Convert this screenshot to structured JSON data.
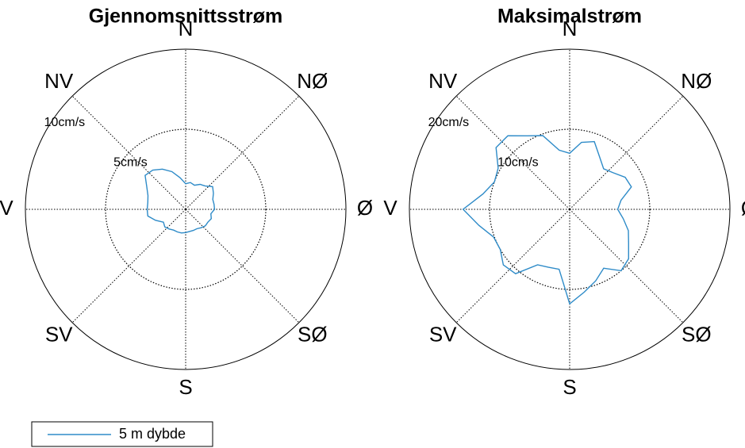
{
  "chart_data": [
    {
      "type": "polar",
      "title": "Gjennomsnittsstrøm",
      "theta": [
        0,
        10,
        20,
        30,
        40,
        50,
        60,
        70,
        80,
        90,
        100,
        110,
        120,
        130,
        140,
        150,
        160,
        170,
        180,
        190,
        200,
        210,
        220,
        230,
        240,
        250,
        260,
        270,
        280,
        290,
        300,
        310,
        320,
        330,
        340,
        350
      ],
      "series": [
        {
          "name": "5 m dybde",
          "color": "#2e8bc8",
          "values": [
            1.6,
            1.7,
            1.6,
            1.8,
            1.9,
            2.2,
            2.0,
            1.8,
            1.8,
            1.8,
            1.6,
            1.7,
            1.6,
            1.6,
            1.5,
            1.4,
            1.4,
            1.4,
            1.45,
            1.5,
            1.5,
            1.5,
            1.6,
            1.7,
            1.6,
            2.0,
            2.4,
            2.4,
            2.4,
            2.5,
            2.8,
            3.3,
            3.2,
            2.9,
            2.5,
            2.0
          ]
        }
      ],
      "rlim": [
        0,
        10
      ],
      "rticks": [
        {
          "value": 5,
          "label": "5cm/s"
        },
        {
          "value": 10,
          "label": "10cm/s"
        }
      ],
      "thetaticks": [
        {
          "value": 0,
          "label": "N"
        },
        {
          "value": 45,
          "label": "NØ"
        },
        {
          "value": 90,
          "label": "Ø"
        },
        {
          "value": 135,
          "label": "SØ"
        },
        {
          "value": 180,
          "label": "S"
        },
        {
          "value": 225,
          "label": "SV"
        },
        {
          "value": 270,
          "label": "V"
        },
        {
          "value": 315,
          "label": "NV"
        }
      ],
      "legend": "bottom-left"
    },
    {
      "type": "polar",
      "title": "Maksimalstrøm",
      "theta": [
        0,
        10,
        20,
        30,
        40,
        50,
        60,
        70,
        80,
        90,
        100,
        110,
        120,
        130,
        140,
        150,
        160,
        170,
        180,
        190,
        200,
        210,
        220,
        230,
        240,
        250,
        260,
        270,
        280,
        290,
        300,
        310,
        320,
        330,
        340,
        350
      ],
      "series": [
        {
          "color": "#2e8bc8",
          "values": [
            7.0,
            8.5,
            9.0,
            7.5,
            6.6,
            7.1,
            8.0,
            8.2,
            6.5,
            6.0,
            6.8,
            7.8,
            8.5,
            9.6,
            10.0,
            8.5,
            9.5,
            10.5,
            11.8,
            7.6,
            7.7,
            8.0,
            10.5,
            10.8,
            10.0,
            10.1,
            11.5,
            13.3,
            11.0,
            10.0,
            10.3,
            12.0,
            12.0,
            10.6,
            9.8,
            7.5
          ]
        }
      ],
      "rlim": [
        0,
        20
      ],
      "rticks": [
        {
          "value": 10,
          "label": "10cm/s"
        },
        {
          "value": 20,
          "label": "20cm/s"
        }
      ],
      "thetaticks": [
        {
          "value": 0,
          "label": "N"
        },
        {
          "value": 45,
          "label": "NØ"
        },
        {
          "value": 90,
          "label": "Ø"
        },
        {
          "value": 135,
          "label": "SØ"
        },
        {
          "value": 180,
          "label": "S"
        },
        {
          "value": 225,
          "label": "SV"
        },
        {
          "value": 270,
          "label": "V"
        },
        {
          "value": 315,
          "label": "NV"
        }
      ]
    }
  ]
}
